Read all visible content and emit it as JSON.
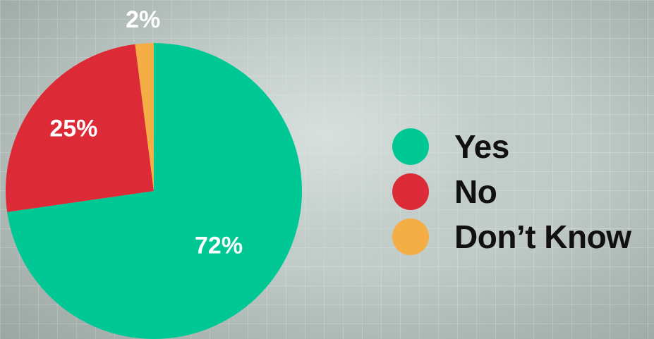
{
  "chart_data": {
    "type": "pie",
    "categories": [
      "Yes",
      "No",
      "Don’t Know"
    ],
    "values": [
      72,
      25,
      2
    ],
    "data_labels": [
      "72%",
      "25%",
      "2%"
    ],
    "colors": [
      "#00c895",
      "#dc2a36",
      "#f5ad45"
    ],
    "title": "",
    "start_angle_deg": 0,
    "direction": "clockwise",
    "legend_position": "right"
  },
  "legend": {
    "items": [
      {
        "label": "Yes",
        "color": "#00c895"
      },
      {
        "label": "No",
        "color": "#dc2a36"
      },
      {
        "label": "Don’t Know",
        "color": "#f5ad45"
      }
    ]
  },
  "theme": {
    "background": "#bcc7c3",
    "grid_lines": "on",
    "label_color": "#ffffff",
    "legend_text_color": "#111111"
  }
}
